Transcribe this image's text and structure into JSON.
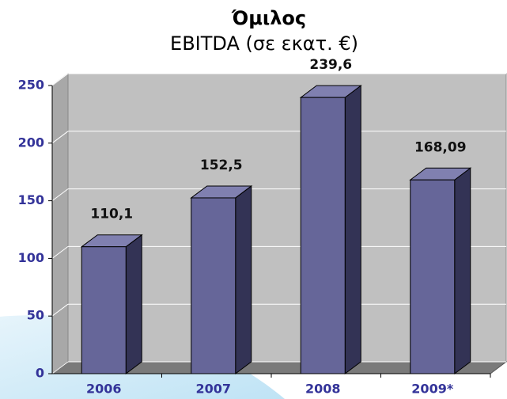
{
  "chart_data": {
    "type": "bar3d",
    "title": "Όμιλος",
    "subtitle": "EBITDA (σε εκατ. €)",
    "categories": [
      "2006",
      "2007",
      "2008",
      "2009*"
    ],
    "values": [
      110.1,
      152.5,
      239.6,
      168.09
    ],
    "value_labels": [
      "110,1",
      "152,5",
      "239,6",
      "168,09"
    ],
    "color": "#666699",
    "ylim": [
      0,
      250
    ],
    "yticks": [
      0,
      50,
      100,
      150,
      200,
      250
    ],
    "grid": true
  }
}
